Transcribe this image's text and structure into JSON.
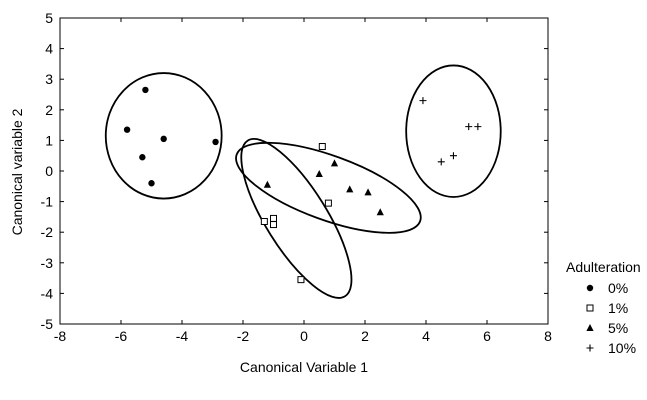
{
  "chart_data": {
    "type": "scatter",
    "xlabel": "Canonical  Variable 1",
    "ylabel": "Canonical variable 2",
    "xlim": [
      -8,
      8
    ],
    "ylim": [
      -5,
      5
    ],
    "x_ticks": [
      "-8",
      "-6",
      "-4",
      "-2",
      "0",
      "2",
      "4",
      "6",
      "8"
    ],
    "y_ticks": [
      "5",
      "4",
      "3",
      "2",
      "1",
      "0",
      "-1",
      "-2",
      "-3",
      "-4",
      "-5"
    ],
    "grid": false,
    "legend": {
      "title": "Adulteration",
      "placement": "right-bottom, outside plot"
    },
    "series": [
      {
        "name": "0%",
        "marker": "circle-filled",
        "points": [
          [
            -5.2,
            2.65
          ],
          [
            -5.8,
            1.35
          ],
          [
            -4.6,
            1.05
          ],
          [
            -5.3,
            0.45
          ],
          [
            -5.0,
            -0.4
          ],
          [
            -2.9,
            0.95
          ]
        ]
      },
      {
        "name": "1%",
        "marker": "square-open",
        "points": [
          [
            0.6,
            0.8
          ],
          [
            0.8,
            -1.05
          ],
          [
            -1.3,
            -1.65
          ],
          [
            -1.0,
            -1.55
          ],
          [
            -1.0,
            -1.75
          ],
          [
            -0.1,
            -3.55
          ]
        ]
      },
      {
        "name": "5%",
        "marker": "triangle-filled",
        "points": [
          [
            -1.2,
            -0.45
          ],
          [
            0.5,
            -0.1
          ],
          [
            1.0,
            0.25
          ],
          [
            1.5,
            -0.6
          ],
          [
            2.1,
            -0.7
          ],
          [
            2.5,
            -1.35
          ]
        ]
      },
      {
        "name": "10%",
        "marker": "plus",
        "points": [
          [
            3.9,
            2.3
          ],
          [
            5.4,
            1.45
          ],
          [
            5.7,
            1.45
          ],
          [
            4.9,
            0.5
          ],
          [
            4.5,
            0.3
          ]
        ]
      }
    ],
    "annotations": "confidence ellipses drawn around each group",
    "ellipses": [
      {
        "series": "0%",
        "cx": -4.6,
        "cy": 1.15,
        "rx_units": 1.9,
        "ry_units": 2.05,
        "rotation_deg": 0
      },
      {
        "series": "1%",
        "cx": -0.25,
        "cy": -1.55,
        "rx_units": 1.0,
        "ry_units": 3.0,
        "rotation_deg": -32
      },
      {
        "series": "5%",
        "cx": 0.8,
        "cy": -0.55,
        "rx_units": 3.2,
        "ry_units": 1.05,
        "rotation_deg": 20
      },
      {
        "series": "10%",
        "cx": 4.9,
        "cy": 1.3,
        "rx_units": 1.55,
        "ry_units": 2.15,
        "rotation_deg": 0
      }
    ]
  }
}
